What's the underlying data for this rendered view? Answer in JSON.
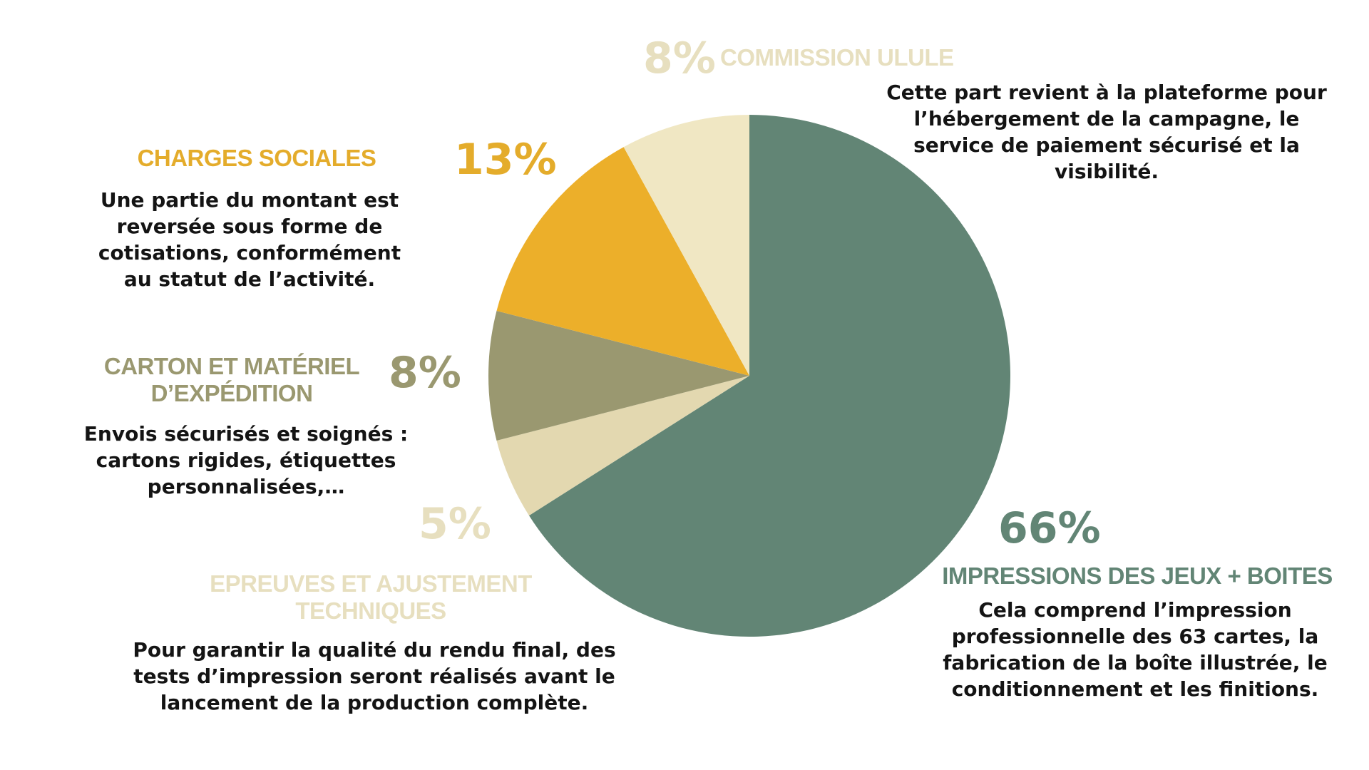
{
  "chart_data": {
    "type": "pie",
    "title": "",
    "start": "top",
    "direction": "clockwise",
    "slices": [
      {
        "key": "impressions",
        "label": "IMPRESSIONS DES JEUX + BOITES",
        "value": 66,
        "value_label": "66%",
        "color": "#628575",
        "title_color": "#628575",
        "description": "Cela comprend l’impression professionnelle des 63 cartes, la fabrication de la boîte illustrée, le conditionnement et les finitions."
      },
      {
        "key": "epreuves",
        "label": "EPREUVES ET AJUSTEMENT TECHNIQUES",
        "value": 5,
        "value_label": "5%",
        "color": "#E3D8B0",
        "title_color": "#E7DFBF",
        "description": "Pour garantir la qualité du rendu final, des tests d’impression seront réalisés avant le lancement de la production complète."
      },
      {
        "key": "carton",
        "label": "CARTON ET MATÉRIEL D’EXPÉDITION",
        "value": 8,
        "value_label": "8%",
        "color": "#9A9870",
        "title_color": "#9A9870",
        "description": "Envois sécurisés et soignés : cartons rigides, étiquettes personnalisées,…"
      },
      {
        "key": "charges",
        "label": "CHARGES SOCIALES",
        "value": 13,
        "value_label": "13%",
        "color": "#ECAF2A",
        "title_color": "#E4AC2B",
        "description": "Une partie du montant est reversée sous forme de cotisations, conformément au statut de l’activité."
      },
      {
        "key": "commission",
        "label": "COMMISSION ULULE",
        "value": 8,
        "value_label": "8%",
        "color": "#F0E7C3",
        "title_color": "#E7DFBF",
        "description": "Cette part revient à la plateforme pour l’hébergement de la campagne, le service de paiement sécurisé et la visibilité."
      }
    ]
  }
}
